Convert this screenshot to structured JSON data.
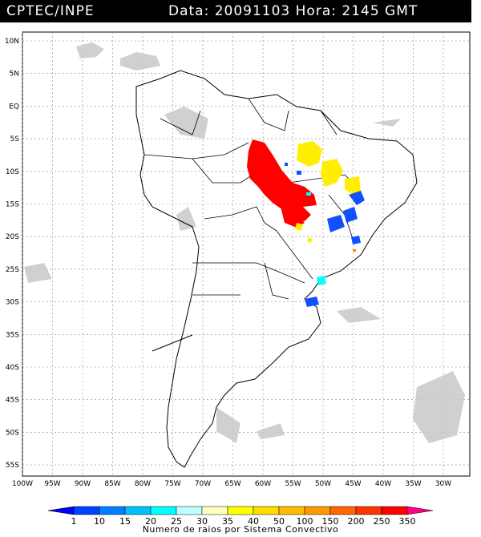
{
  "header": {
    "source": "CPTEC/INPE",
    "datetime_text": "Data: 20091103 Hora: 2145 GMT"
  },
  "map": {
    "lat_labels": [
      "10N",
      "5N",
      "EQ",
      "5S",
      "10S",
      "15S",
      "20S",
      "25S",
      "30S",
      "35S",
      "40S",
      "45S",
      "50S",
      "55S"
    ],
    "lon_labels": [
      "100W",
      "95W",
      "90W",
      "85W",
      "80W",
      "75W",
      "70W",
      "65W",
      "60W",
      "55W",
      "50W",
      "45W",
      "40W",
      "35W",
      "30W"
    ]
  },
  "legend": {
    "labels": [
      "1",
      "10",
      "15",
      "20",
      "25",
      "30",
      "35",
      "40",
      "50",
      "100",
      "150",
      "200",
      "250",
      "350"
    ],
    "colors": [
      "#0000ff",
      "#0040ff",
      "#0080ff",
      "#00c0ff",
      "#00ffff",
      "#c0ffff",
      "#ffffc0",
      "#ffff00",
      "#ffdd00",
      "#ffbb00",
      "#ff9900",
      "#ff6600",
      "#ff3300",
      "#ff0000",
      "#ff0080"
    ],
    "title": "Numero de raios por Sistema Convectivo"
  }
}
